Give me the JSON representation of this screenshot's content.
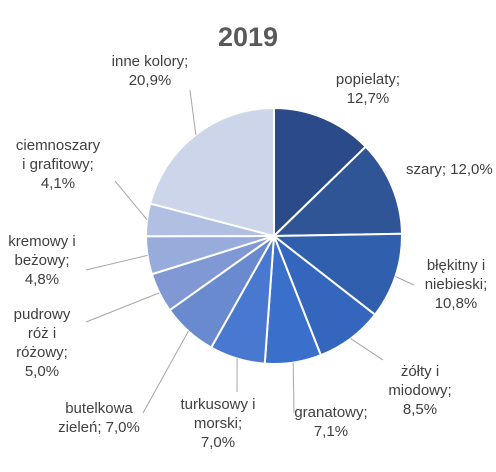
{
  "chart_data": {
    "type": "pie",
    "title": "2019",
    "slices": [
      {
        "name": "popielaty",
        "value": 12.7,
        "label_lines": [
          "popielaty;",
          "12,7%"
        ],
        "color": "#2b4a8a"
      },
      {
        "name": "szary",
        "value": 12.0,
        "label_lines": [
          "szary; 12,0%"
        ],
        "color": "#2f5597"
      },
      {
        "name": "błękitny i niebieski",
        "value": 10.8,
        "label_lines": [
          "błękitny i",
          "niebieski;",
          "10,8%"
        ],
        "color": "#305fae"
      },
      {
        "name": "żółty i miodowy",
        "value": 8.5,
        "label_lines": [
          "żółty i",
          "miodowy;",
          "8,5%"
        ],
        "color": "#3466bd"
      },
      {
        "name": "granatowy",
        "value": 7.1,
        "label_lines": [
          "granatowy;",
          "7,1%"
        ],
        "color": "#3a6fcb"
      },
      {
        "name": "turkusowy i morski",
        "value": 7.0,
        "label_lines": [
          "turkusowy i",
          "morski;",
          "7,0%"
        ],
        "color": "#4878d0"
      },
      {
        "name": "butelkowa zieleń",
        "value": 7.0,
        "label_lines": [
          "butelkowa",
          "zieleń; 7,0%"
        ],
        "color": "#6a8ad0"
      },
      {
        "name": "pudrowy róż i różowy",
        "value": 5.0,
        "label_lines": [
          "pudrowy",
          "róż i",
          "różowy;",
          "5,0%"
        ],
        "color": "#8099d4"
      },
      {
        "name": "kremowy i beżowy",
        "value": 4.8,
        "label_lines": [
          "kremowy i",
          "beżowy;",
          "4,8%"
        ],
        "color": "#98acdb"
      },
      {
        "name": "ciemnoszary i grafitowy",
        "value": 4.1,
        "label_lines": [
          "ciemnoszary",
          "i grafitowy;",
          "4,1%"
        ],
        "color": "#b1bfe3"
      },
      {
        "name": "inne kolory",
        "value": 20.9,
        "label_lines": [
          "inne kolory;",
          "20,9%"
        ],
        "color": "#cdd5eb"
      }
    ]
  }
}
